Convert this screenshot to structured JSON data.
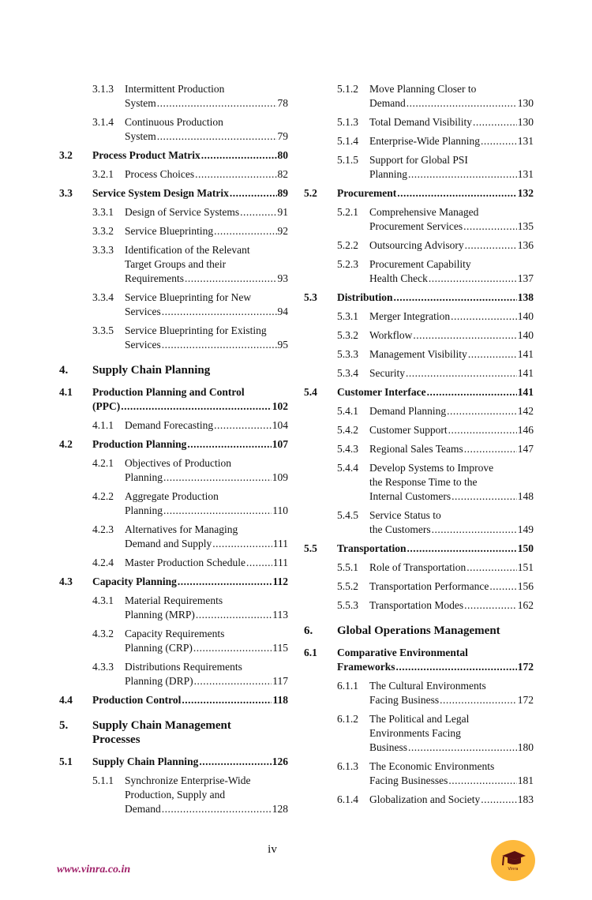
{
  "columns": {
    "left": [
      {
        "level": "sub",
        "num": "3.1.3",
        "lines": [
          "Intermittent Production",
          "System"
        ],
        "page": "78"
      },
      {
        "level": "sub",
        "num": "3.1.4",
        "lines": [
          "Continuous Production",
          "System"
        ],
        "page": "79"
      },
      {
        "level": "sec",
        "num": "3.2",
        "lines": [
          "Process Product Matrix"
        ],
        "page": "80"
      },
      {
        "level": "sub",
        "num": "3.2.1",
        "lines": [
          "Process Choices"
        ],
        "page": "82"
      },
      {
        "level": "sec",
        "num": "3.3",
        "lines": [
          "Service System Design Matrix"
        ],
        "page": "89"
      },
      {
        "level": "sub",
        "num": "3.3.1",
        "lines": [
          "Design of Service Systems"
        ],
        "page": "91"
      },
      {
        "level": "sub",
        "num": "3.3.2",
        "lines": [
          "Service Blueprinting"
        ],
        "page": "92"
      },
      {
        "level": "sub",
        "num": "3.3.3",
        "lines": [
          "Identification of the Relevant",
          "Target Groups and their",
          "Requirements"
        ],
        "page": "93"
      },
      {
        "level": "sub",
        "num": "3.3.4",
        "lines": [
          "Service Blueprinting for New",
          "Services"
        ],
        "page": "94"
      },
      {
        "level": "sub",
        "num": "3.3.5",
        "lines": [
          "Service Blueprinting for Existing",
          "Services"
        ],
        "page": "95"
      },
      {
        "level": "chap",
        "num": "4.",
        "lines": [
          "Supply Chain Planning"
        ]
      },
      {
        "level": "sec",
        "num": "4.1",
        "lines": [
          "Production Planning and Control",
          "(PPC)"
        ],
        "page": "102"
      },
      {
        "level": "sub",
        "num": "4.1.1",
        "lines": [
          "Demand Forecasting"
        ],
        "page": "104"
      },
      {
        "level": "sec",
        "num": "4.2",
        "lines": [
          "Production Planning"
        ],
        "page": "107"
      },
      {
        "level": "sub",
        "num": "4.2.1",
        "lines": [
          "Objectives of Production",
          "Planning"
        ],
        "page": "109"
      },
      {
        "level": "sub",
        "num": "4.2.2",
        "lines": [
          "Aggregate Production",
          "Planning"
        ],
        "page": "110"
      },
      {
        "level": "sub",
        "num": "4.2.3",
        "lines": [
          "Alternatives for Managing",
          "Demand and Supply"
        ],
        "page": "111"
      },
      {
        "level": "sub",
        "num": "4.2.4",
        "lines": [
          "Master Production Schedule"
        ],
        "page": "111"
      },
      {
        "level": "sec",
        "num": "4.3",
        "lines": [
          "Capacity Planning"
        ],
        "page": "112"
      },
      {
        "level": "sub",
        "num": "4.3.1",
        "lines": [
          "Material Requirements",
          "Planning (MRP)"
        ],
        "page": "113"
      },
      {
        "level": "sub",
        "num": "4.3.2",
        "lines": [
          "Capacity Requirements",
          "Planning (CRP)"
        ],
        "page": "115"
      },
      {
        "level": "sub",
        "num": "4.3.3",
        "lines": [
          "Distributions Requirements",
          "Planning (DRP)"
        ],
        "page": "117"
      },
      {
        "level": "sec",
        "num": "4.4",
        "lines": [
          "Production Control"
        ],
        "page": "118"
      },
      {
        "level": "chap",
        "num": "5.",
        "lines": [
          "Supply Chain Management",
          "Processes"
        ]
      },
      {
        "level": "sec",
        "num": "5.1",
        "lines": [
          "Supply Chain Planning"
        ],
        "page": "126"
      },
      {
        "level": "sub",
        "num": "5.1.1",
        "lines": [
          "Synchronize Enterprise-Wide",
          "Production, Supply and",
          "Demand"
        ],
        "page": "128"
      }
    ],
    "right": [
      {
        "level": "sub",
        "num": "5.1.2",
        "lines": [
          "Move Planning Closer to",
          "Demand"
        ],
        "page": "130"
      },
      {
        "level": "sub",
        "num": "5.1.3",
        "lines": [
          "Total Demand Visibility"
        ],
        "page": "130"
      },
      {
        "level": "sub",
        "num": "5.1.4",
        "lines": [
          "Enterprise-Wide Planning"
        ],
        "page": "131"
      },
      {
        "level": "sub",
        "num": "5.1.5",
        "lines": [
          "Support for Global PSI",
          "Planning"
        ],
        "page": "131"
      },
      {
        "level": "sec",
        "num": "5.2",
        "lines": [
          "Procurement"
        ],
        "page": "132"
      },
      {
        "level": "sub",
        "num": "5.2.1",
        "lines": [
          "Comprehensive Managed",
          "Procurement Services"
        ],
        "page": "135"
      },
      {
        "level": "sub",
        "num": "5.2.2",
        "lines": [
          "Outsourcing Advisory"
        ],
        "page": "136"
      },
      {
        "level": "sub",
        "num": "5.2.3",
        "lines": [
          "Procurement Capability",
          "Health Check"
        ],
        "page": "137"
      },
      {
        "level": "sec",
        "num": "5.3",
        "lines": [
          "Distribution"
        ],
        "page": "138"
      },
      {
        "level": "sub",
        "num": "5.3.1",
        "lines": [
          "Merger Integration"
        ],
        "page": "140"
      },
      {
        "level": "sub",
        "num": "5.3.2",
        "lines": [
          "Workflow"
        ],
        "page": "140"
      },
      {
        "level": "sub",
        "num": "5.3.3",
        "lines": [
          "Management Visibility"
        ],
        "page": "141"
      },
      {
        "level": "sub",
        "num": "5.3.4",
        "lines": [
          "Security"
        ],
        "page": "141"
      },
      {
        "level": "sec",
        "num": "5.4",
        "lines": [
          "Customer Interface"
        ],
        "page": "141"
      },
      {
        "level": "sub",
        "num": "5.4.1",
        "lines": [
          "Demand Planning"
        ],
        "page": "142"
      },
      {
        "level": "sub",
        "num": "5.4.2",
        "lines": [
          "Customer Support"
        ],
        "page": "146"
      },
      {
        "level": "sub",
        "num": "5.4.3",
        "lines": [
          "Regional Sales Teams"
        ],
        "page": "147"
      },
      {
        "level": "sub",
        "num": "5.4.4",
        "lines": [
          "Develop Systems to Improve",
          "the Response Time to the",
          "Internal Customers"
        ],
        "page": "148"
      },
      {
        "level": "sub",
        "num": "5.4.5",
        "lines": [
          "Service Status to",
          "the Customers"
        ],
        "page": "149"
      },
      {
        "level": "sec",
        "num": "5.5",
        "lines": [
          "Transportation"
        ],
        "page": "150"
      },
      {
        "level": "sub",
        "num": "5.5.1",
        "lines": [
          "Role of Transportation"
        ],
        "page": "151"
      },
      {
        "level": "sub",
        "num": "5.5.2",
        "lines": [
          "Transportation Performance"
        ],
        "page": "156"
      },
      {
        "level": "sub",
        "num": "5.5.3",
        "lines": [
          "Transportation Modes"
        ],
        "page": "162"
      },
      {
        "level": "chap",
        "num": "6.",
        "lines": [
          "Global Operations Management"
        ]
      },
      {
        "level": "sec",
        "num": "6.1",
        "lines": [
          "Comparative Environmental",
          "Frameworks"
        ],
        "page": "172"
      },
      {
        "level": "sub",
        "num": "6.1.1",
        "lines": [
          "The Cultural Environments",
          "Facing Business"
        ],
        "page": "172"
      },
      {
        "level": "sub",
        "num": "6.1.2",
        "lines": [
          "The Political and Legal",
          "Environments Facing",
          "Business"
        ],
        "page": "180"
      },
      {
        "level": "sub",
        "num": "6.1.3",
        "lines": [
          "The Economic Environments",
          "Facing Businesses"
        ],
        "page": "181"
      },
      {
        "level": "sub",
        "num": "6.1.4",
        "lines": [
          "Globalization and Society"
        ],
        "page": "183"
      }
    ]
  },
  "footer": {
    "page_number": "iv",
    "website": "www.vinra.co.in",
    "logo_text": "Vinra",
    "logo_icon": "graduation-cap-icon",
    "logo_color": "#fdb93c",
    "website_color": "#a0226a"
  }
}
